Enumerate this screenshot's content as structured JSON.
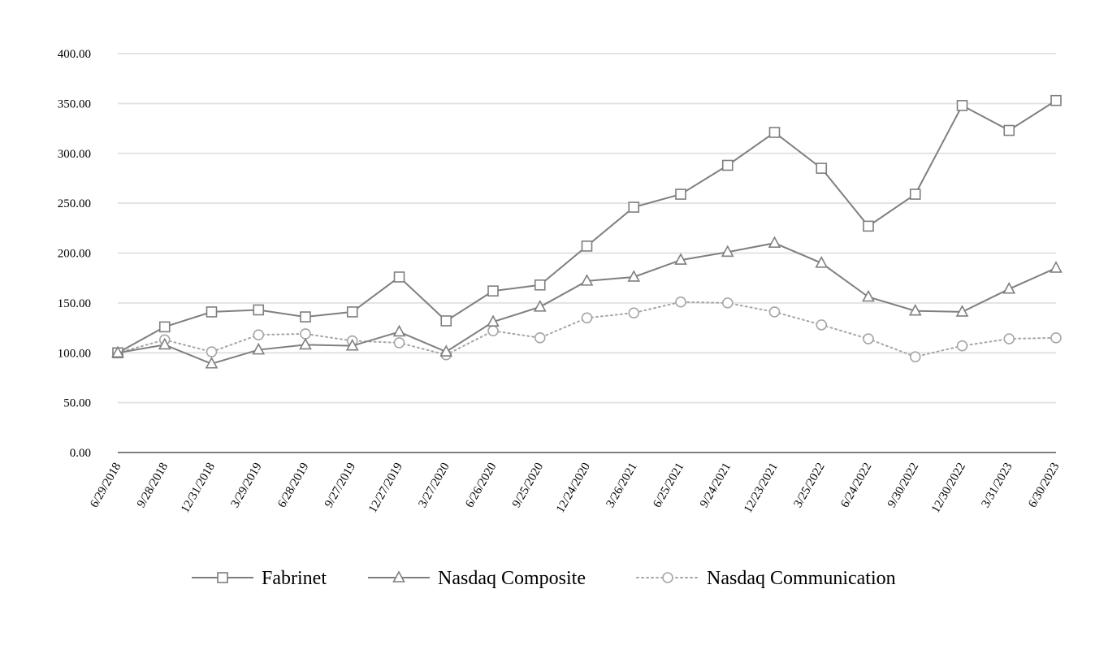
{
  "chart_data": {
    "type": "line",
    "title": "",
    "xlabel": "",
    "ylabel": "",
    "ylim": [
      0,
      400
    ],
    "yticks": [
      "0.00",
      "50.00",
      "100.00",
      "150.00",
      "200.00",
      "250.00",
      "300.00",
      "350.00",
      "400.00"
    ],
    "grid": "horizontal",
    "legend_position": "bottom",
    "categories": [
      "6/29/2018",
      "9/28/2018",
      "12/31/2018",
      "3/29/2019",
      "6/28/2019",
      "9/27/2019",
      "12/27/2019",
      "3/27/2020",
      "6/26/2020",
      "9/25/2020",
      "12/24/2020",
      "3/26/2021",
      "6/25/2021",
      "9/24/2021",
      "12/23/2021",
      "3/25/2022",
      "6/24/2022",
      "9/30/2022",
      "12/30/2022",
      "3/31/2023",
      "6/30/2023"
    ],
    "series": [
      {
        "name": "Fabrinet",
        "marker": "square",
        "line": "solid",
        "color": "#7f7f7f",
        "values": [
          100,
          126,
          141,
          143,
          136,
          141,
          176,
          132,
          162,
          168,
          207,
          246,
          259,
          288,
          321,
          285,
          227,
          259,
          348,
          323,
          353
        ]
      },
      {
        "name": "Nasdaq Composite",
        "marker": "triangle",
        "line": "solid",
        "color": "#7f7f7f",
        "values": [
          100,
          108,
          89,
          103,
          108,
          107,
          121,
          101,
          131,
          146,
          172,
          176,
          193,
          201,
          210,
          190,
          156,
          142,
          141,
          164,
          185
        ]
      },
      {
        "name": "Nasdaq Communication",
        "marker": "circle",
        "line": "dotted",
        "color": "#a6a6a6",
        "values": [
          100,
          113,
          101,
          118,
          119,
          112,
          110,
          98,
          122,
          115,
          135,
          140,
          151,
          150,
          141,
          128,
          114,
          96,
          107,
          114,
          115
        ]
      }
    ]
  }
}
